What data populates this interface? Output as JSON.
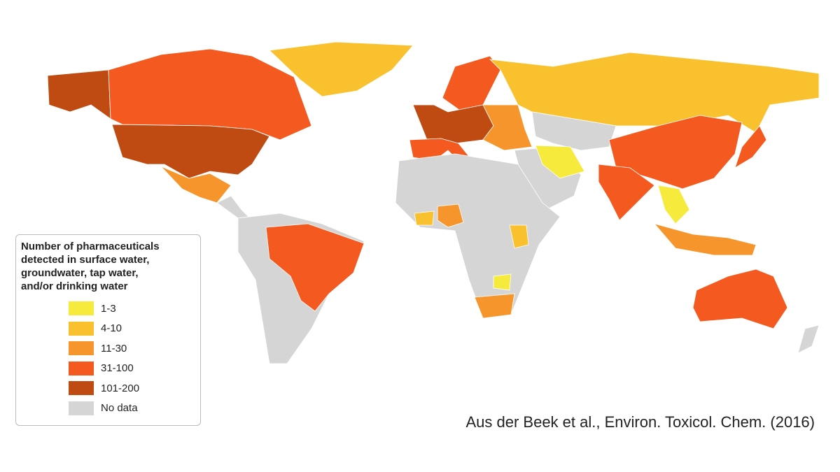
{
  "legend": {
    "title_lines": [
      "Number of pharmaceuticals",
      "detected in surface water,",
      "groundwater, tap water,",
      "and/or drinking water"
    ],
    "items": [
      {
        "label": "1-3",
        "color": "#f6ea3c"
      },
      {
        "label": "4-10",
        "color": "#f8c12d"
      },
      {
        "label": "11-30",
        "color": "#f6952c"
      },
      {
        "label": "31-100",
        "color": "#f45a20"
      },
      {
        "label": "101-200",
        "color": "#bf4a12"
      },
      {
        "label": "No data",
        "color": "#d5d5d5"
      }
    ]
  },
  "citation": "Aus der Beek et al., Environ. Toxicol. Chem. (2016)"
}
